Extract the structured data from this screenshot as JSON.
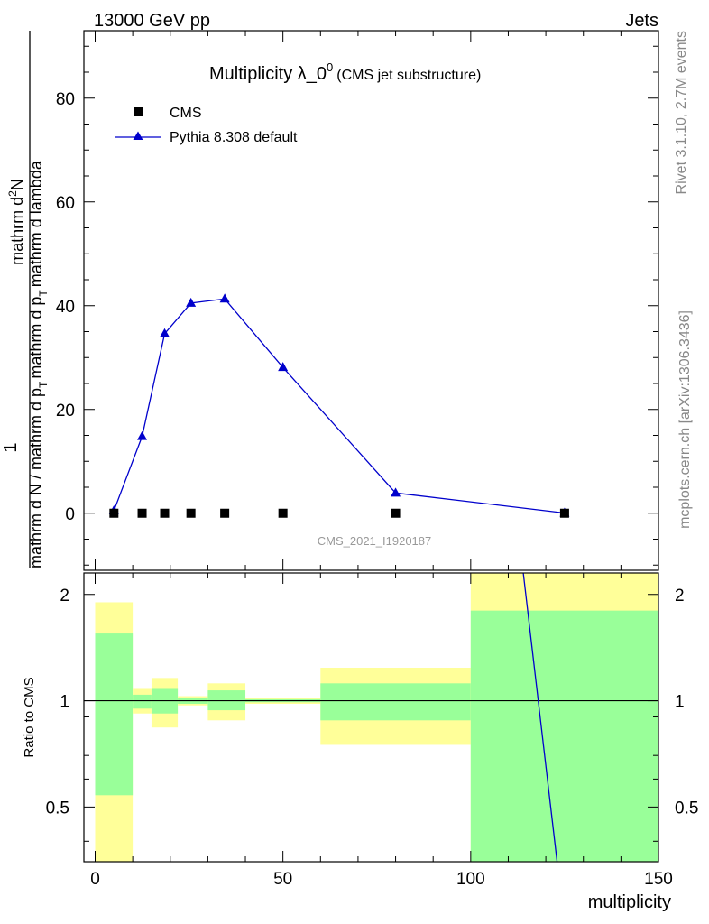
{
  "header": {
    "left": "13000 GeV pp",
    "right": "Jets"
  },
  "side_labels": {
    "rivet": "Rivet 3.1.10,  2.7M events",
    "mcplots": "mcplots.cern.ch [arXiv:1306.3436]"
  },
  "watermark": "CMS_2021_I1920187",
  "colors": {
    "mc": "#0000cc",
    "data": "#000000",
    "band_outer": "#ffff99",
    "band_inner": "#99ff99"
  },
  "chart_data": [
    {
      "type": "scatter",
      "title": "Multiplicity λ_0",
      "title_sup": "0",
      "subtitle": "(CMS jet substructure)",
      "ylabel_numerator": "1",
      "ylabel_denominator": "mathrm d N / mathrm d p",
      "ylabel_sub": "T",
      "ylabel_right": "mathrm d p",
      "ylabel_right_sub": "T",
      "ylabel_right_tail": "mathrm d lambda",
      "ylabel_top": "mathrm d",
      "ylabel_top_sup": "2",
      "ylabel_top_tail": "N",
      "xlim": [
        -3,
        150
      ],
      "ylim": [
        -11,
        93
      ],
      "yticks": [
        0,
        20,
        40,
        60,
        80
      ],
      "legend": {
        "position": "top-left",
        "entries": [
          "CMS",
          "Pythia 8.308 default"
        ]
      },
      "series": [
        {
          "name": "CMS",
          "marker": "square",
          "x": [
            5,
            12.5,
            18.5,
            25.5,
            34.5,
            50,
            80,
            125
          ],
          "y": [
            0,
            0,
            0,
            0,
            0,
            0,
            0,
            0
          ]
        },
        {
          "name": "Pythia 8.308 default",
          "marker": "triangle",
          "x": [
            5,
            12.5,
            18.5,
            25.5,
            34.5,
            50,
            80,
            125
          ],
          "y": [
            0.5,
            14.8,
            34.6,
            40.5,
            41.3,
            28.1,
            3.9,
            0.05
          ]
        }
      ]
    },
    {
      "type": "area",
      "ylabel": "Ratio to CMS",
      "xlabel": "multiplicity",
      "xlim": [
        -3,
        150
      ],
      "ylim": [
        0.35,
        2.3
      ],
      "log_y": true,
      "xticks": [
        0,
        50,
        100,
        150
      ],
      "yticks": [
        0.5,
        1,
        2
      ],
      "bands": [
        {
          "x0": 0,
          "x1": 10,
          "outer": [
            0.2,
            1.9
          ],
          "inner": [
            0.54,
            1.55
          ]
        },
        {
          "x0": 10,
          "x1": 15,
          "outer": [
            0.92,
            1.08
          ],
          "inner": [
            0.95,
            1.04
          ]
        },
        {
          "x0": 15,
          "x1": 22,
          "outer": [
            0.84,
            1.16
          ],
          "inner": [
            0.92,
            1.08
          ]
        },
        {
          "x0": 22,
          "x1": 30,
          "outer": [
            0.97,
            1.03
          ],
          "inner": [
            0.98,
            1.02
          ]
        },
        {
          "x0": 30,
          "x1": 40,
          "outer": [
            0.88,
            1.12
          ],
          "inner": [
            0.94,
            1.07
          ]
        },
        {
          "x0": 40,
          "x1": 60,
          "outer": [
            0.98,
            1.02
          ],
          "inner": [
            0.99,
            1.01
          ]
        },
        {
          "x0": 60,
          "x1": 100,
          "outer": [
            0.75,
            1.24
          ],
          "inner": [
            0.88,
            1.12
          ]
        },
        {
          "x0": 100,
          "x1": 150,
          "outer": [
            0.2,
            2.5
          ],
          "inner": [
            0.2,
            1.8
          ]
        }
      ],
      "ratio_line": {
        "name": "Pythia 8.308 default",
        "x": [
          114,
          123
        ],
        "y": [
          2.3,
          0.35
        ]
      }
    }
  ]
}
